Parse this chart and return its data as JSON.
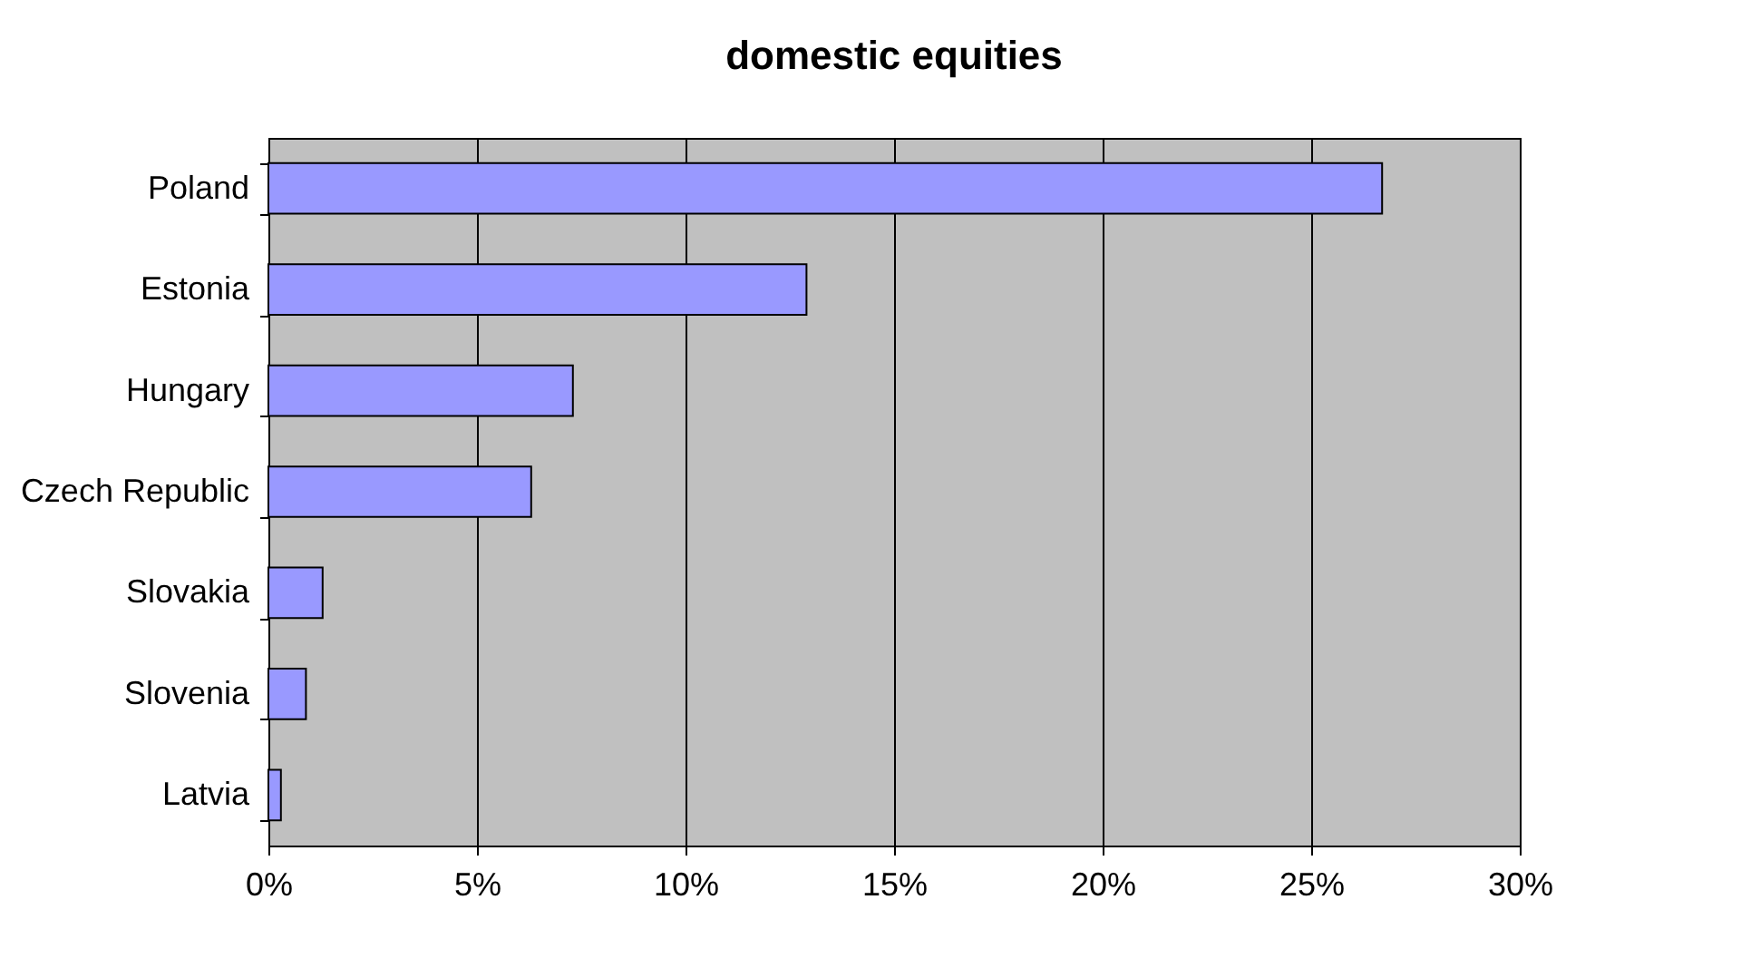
{
  "chart_data": {
    "type": "bar",
    "orientation": "horizontal",
    "title": "domestic equities",
    "categories": [
      "Poland",
      "Estonia",
      "Hungary",
      "Czech Republic",
      "Slovakia",
      "Slovenia",
      "Latvia"
    ],
    "values": [
      26.7,
      12.9,
      7.3,
      6.3,
      1.3,
      0.9,
      0.3
    ],
    "color": "#9999ff",
    "xlim": [
      0,
      30
    ],
    "xticks": [
      {
        "value": 0,
        "label": "0%"
      },
      {
        "value": 5,
        "label": "5%"
      },
      {
        "value": 10,
        "label": "10%"
      },
      {
        "value": 15,
        "label": "15%"
      },
      {
        "value": 20,
        "label": "20%"
      },
      {
        "value": 25,
        "label": "25%"
      },
      {
        "value": 30,
        "label": "30%"
      }
    ],
    "grid": "x"
  }
}
